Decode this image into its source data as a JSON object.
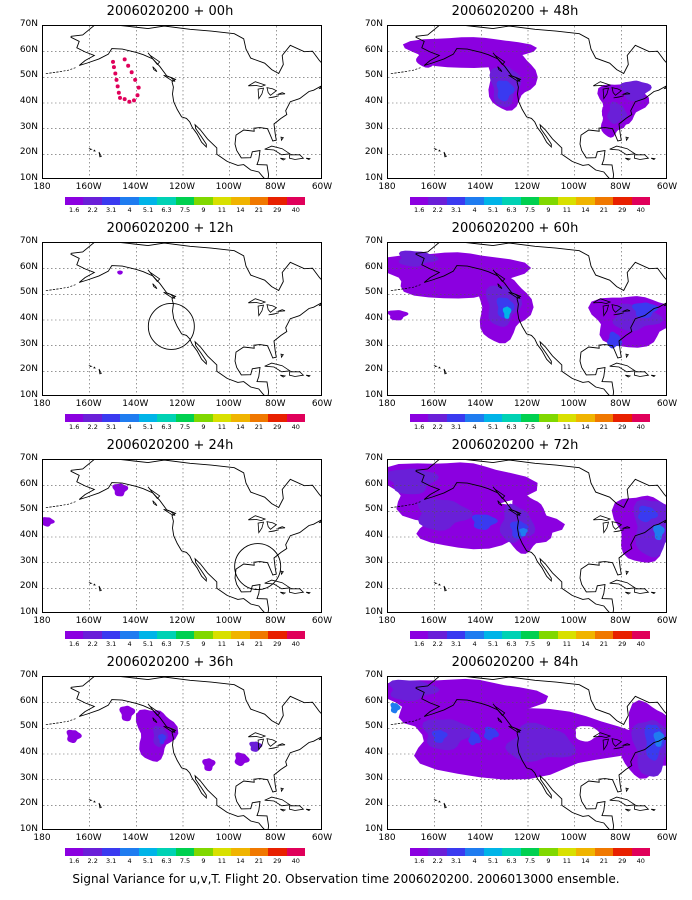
{
  "panels": [
    {
      "title": "2006020200 + 00h",
      "col": 0,
      "row": 0,
      "lead": "00h"
    },
    {
      "title": "2006020200 + 48h",
      "col": 1,
      "row": 0,
      "lead": "48h"
    },
    {
      "title": "2006020200 + 12h",
      "col": 0,
      "row": 1,
      "lead": "12h"
    },
    {
      "title": "2006020200 + 60h",
      "col": 1,
      "row": 1,
      "lead": "60h"
    },
    {
      "title": "2006020200 + 24h",
      "col": 0,
      "row": 2,
      "lead": "24h"
    },
    {
      "title": "2006020200 + 72h",
      "col": 1,
      "row": 2,
      "lead": "72h"
    },
    {
      "title": "2006020200 + 36h",
      "col": 0,
      "row": 3,
      "lead": "36h"
    },
    {
      "title": "2006020200 + 84h",
      "col": 1,
      "row": 3,
      "lead": "84h"
    }
  ],
  "lat_labels": [
    "70N",
    "60N",
    "50N",
    "40N",
    "30N",
    "20N",
    "10N"
  ],
  "lon_labels": [
    "180",
    "160W",
    "140W",
    "120W",
    "100W",
    "80W",
    "60W"
  ],
  "colorbar": {
    "labels": [
      "1.6",
      "2.2",
      "3.1",
      "4",
      "5.1",
      "6.3",
      "7.5",
      "9",
      "11",
      "14",
      "21",
      "29",
      "40"
    ],
    "colors": [
      "#8b00e0",
      "#6a1fd8",
      "#3a3af0",
      "#1f7cf0",
      "#00b4e8",
      "#00d2b4",
      "#00d050",
      "#80d800",
      "#d8e000",
      "#f0b400",
      "#f07800",
      "#e82000",
      "#e0005a"
    ]
  },
  "footer": "Signal Variance for u,v,T. Flight 20. Observation time 2006020200. 2006013000 ensemble."
}
